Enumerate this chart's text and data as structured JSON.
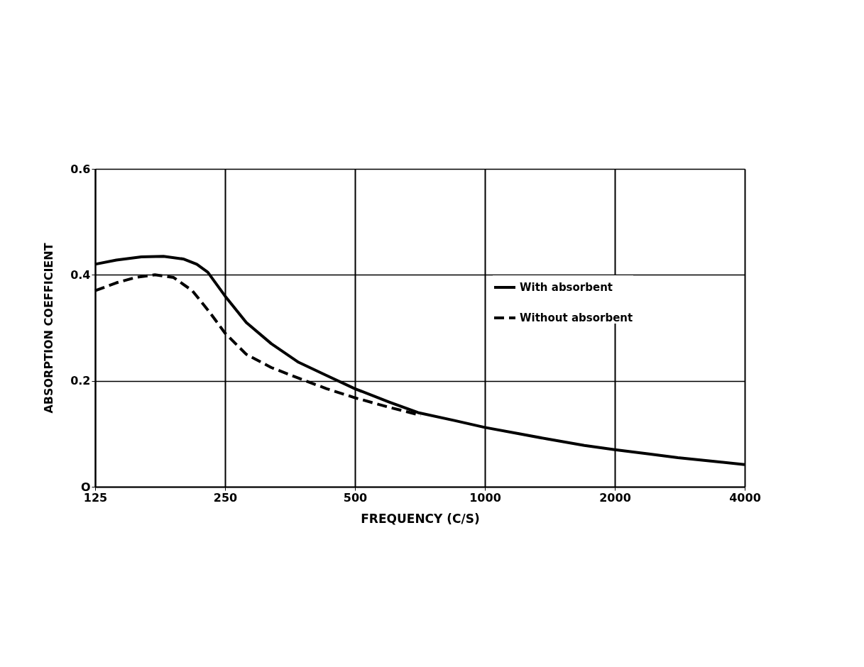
{
  "chart_data": {
    "type": "line",
    "xlabel": "FREQUENCY (C/S)",
    "ylabel": "ABSORPTION COEFFICIENT",
    "log": "x",
    "xlim": [
      125,
      4000
    ],
    "xticks": [
      125,
      250,
      500,
      1000,
      2000,
      4000
    ],
    "ylim": [
      0,
      0.6
    ],
    "yticks": [
      {
        "value": 0,
        "label": "O"
      },
      0.2,
      0.4,
      0.6
    ],
    "grid": true,
    "legend": "right",
    "marker": "none",
    "series": [
      {
        "name": "With absorbent",
        "color": "#000000",
        "line_style": "solid",
        "x": [
          125,
          140,
          160,
          180,
          200,
          215,
          228,
          250,
          280,
          320,
          370,
          430,
          500,
          600,
          700,
          850,
          1000,
          1200,
          1400,
          1700,
          2000,
          2400,
          2800,
          3400,
          4000
        ],
        "values": [
          0.42,
          0.428,
          0.434,
          0.435,
          0.43,
          0.42,
          0.405,
          0.36,
          0.31,
          0.27,
          0.235,
          0.21,
          0.185,
          0.16,
          0.14,
          0.125,
          0.112,
          0.1,
          0.09,
          0.078,
          0.07,
          0.062,
          0.055,
          0.048,
          0.042
        ]
      },
      {
        "name": "Without absorbent",
        "color": "#000000",
        "line_style": "dashed",
        "x": [
          125,
          140,
          155,
          172,
          190,
          210,
          230,
          250,
          280,
          320,
          370,
          430,
          500,
          600,
          710
        ],
        "values": [
          0.37,
          0.385,
          0.395,
          0.4,
          0.395,
          0.37,
          0.33,
          0.29,
          0.25,
          0.225,
          0.205,
          0.185,
          0.168,
          0.15,
          0.135
        ]
      }
    ]
  }
}
